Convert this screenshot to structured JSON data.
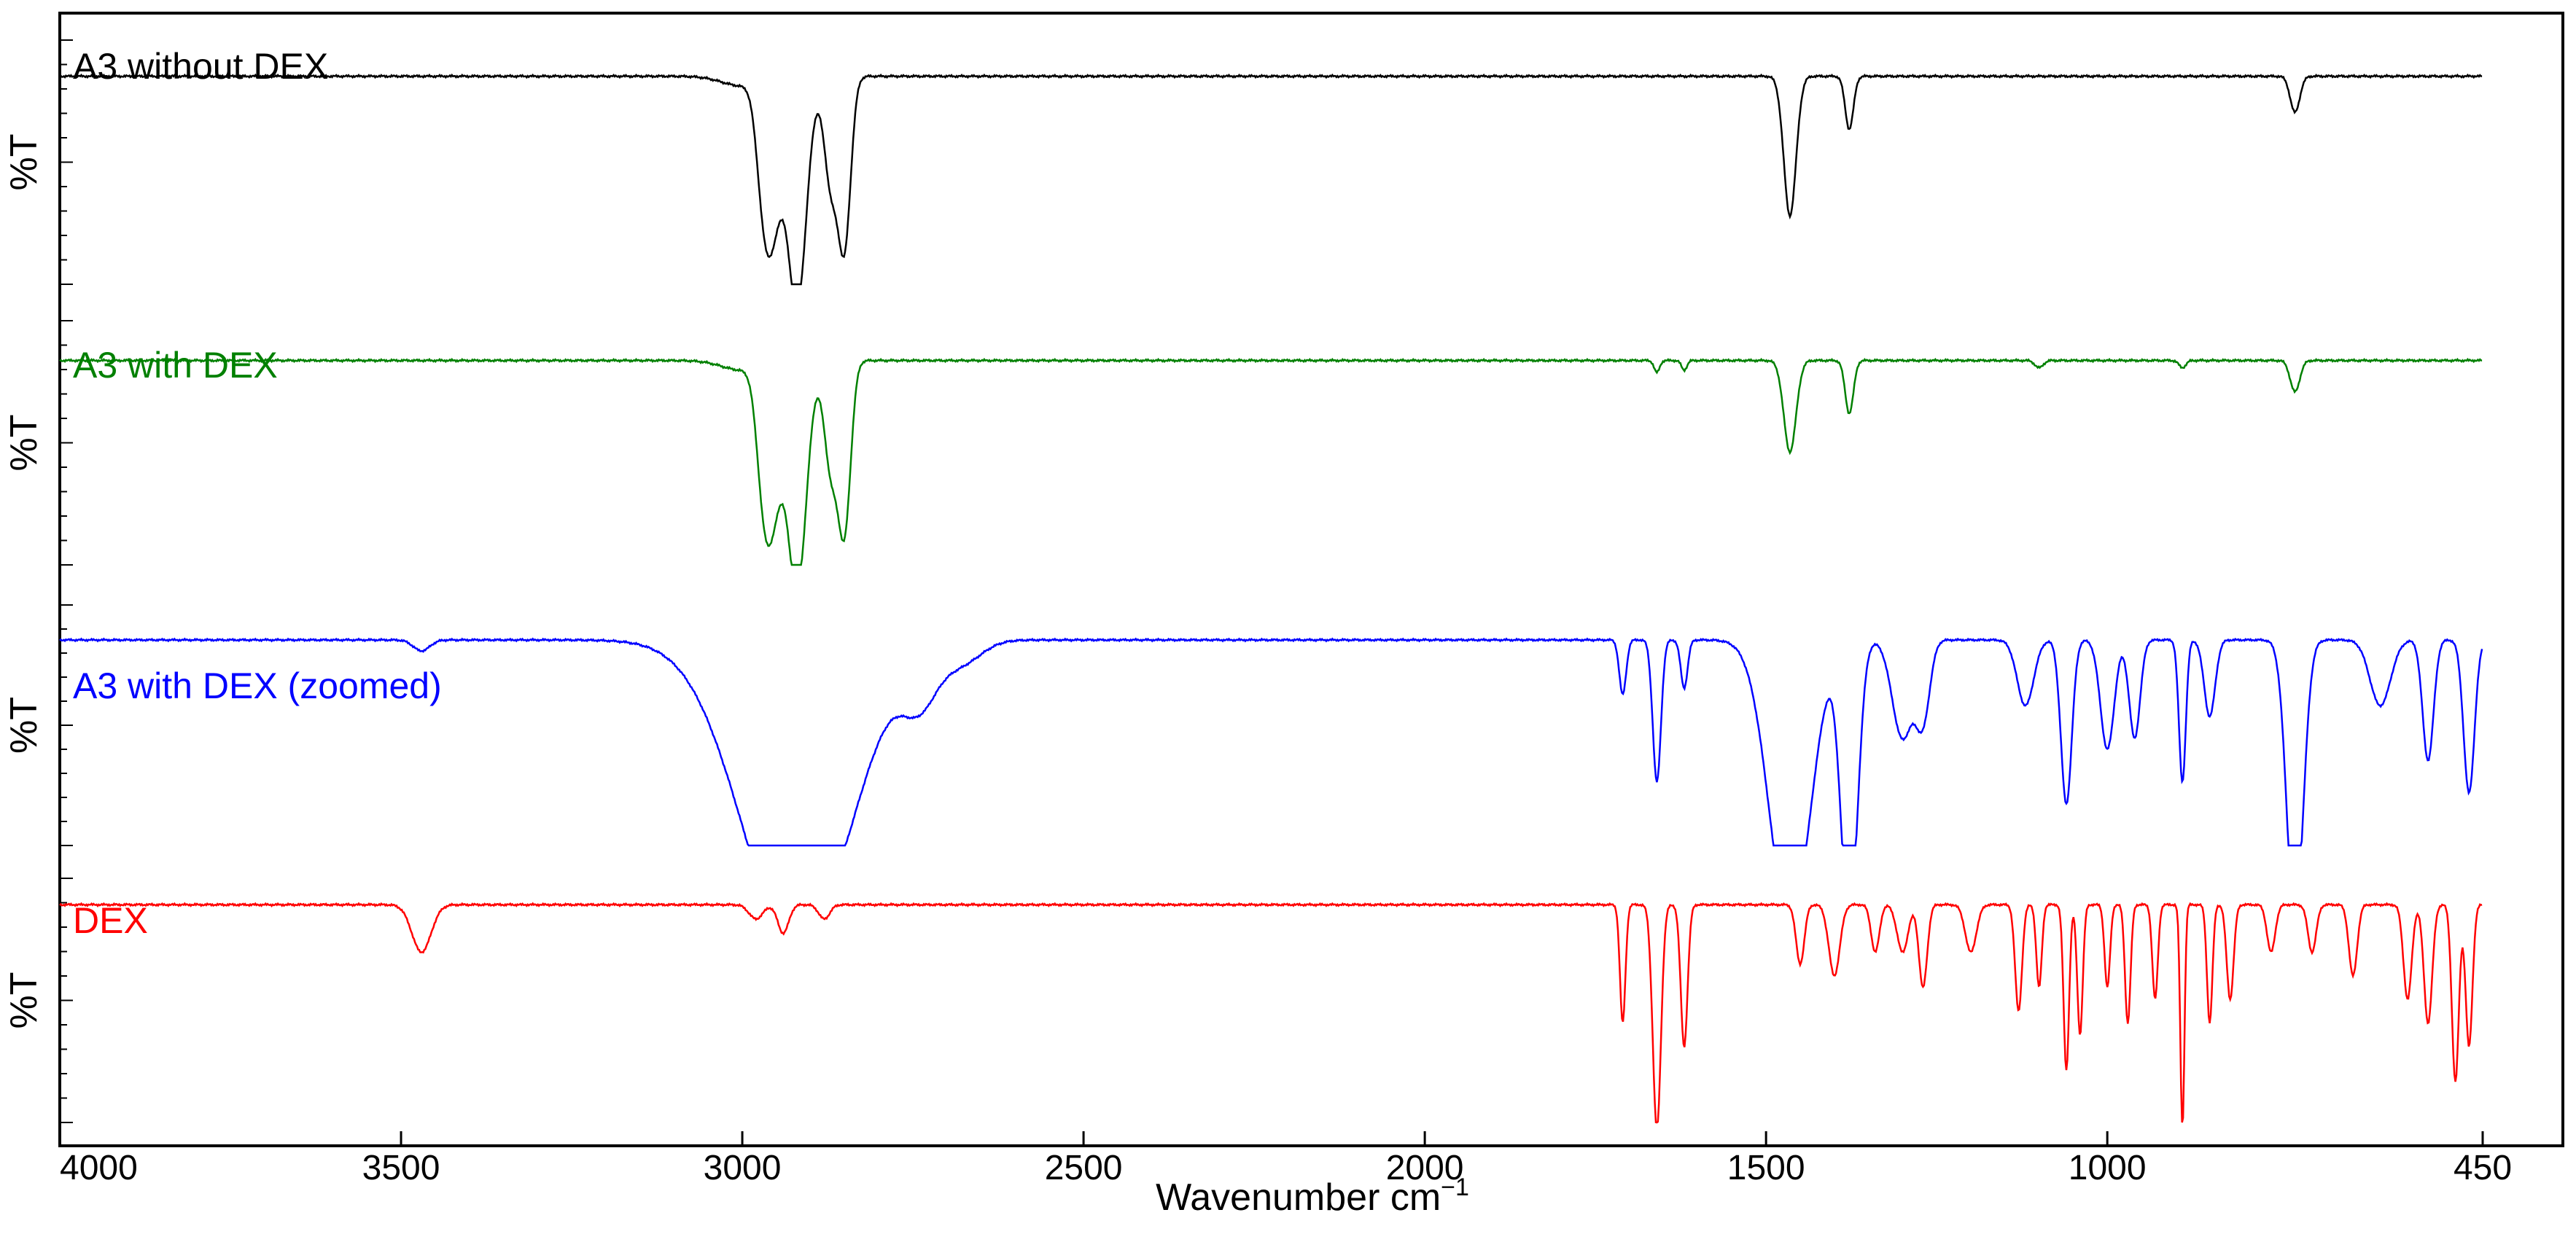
{
  "chart_data": {
    "type": "line",
    "xlabel_main": "Wavenumber cm",
    "xlabel_sup": "−1",
    "ylabel": "%T",
    "xlim": [
      4000,
      450
    ],
    "x_ticks": [
      4000,
      3500,
      3000,
      2500,
      2000,
      1500,
      1000,
      450
    ],
    "grid": false,
    "legend": "none",
    "series": [
      {
        "name": "A3 without DEX",
        "color": "#000000",
        "baseline": 0.12,
        "peaks": [
          [
            3000,
            0.04,
            30
          ],
          [
            2970,
            0.35,
            10
          ],
          [
            2955,
            0.55,
            12
          ],
          [
            2920,
            0.95,
            14
          ],
          [
            2870,
            0.45,
            10
          ],
          [
            2850,
            0.68,
            9
          ],
          [
            1465,
            0.58,
            9
          ],
          [
            1378,
            0.22,
            6
          ],
          [
            725,
            0.15,
            7
          ]
        ]
      },
      {
        "name": "A3 with DEX",
        "color": "#008000",
        "baseline": 0.12,
        "peaks": [
          [
            3000,
            0.04,
            30
          ],
          [
            2970,
            0.38,
            10
          ],
          [
            2955,
            0.55,
            12
          ],
          [
            2920,
            0.95,
            14
          ],
          [
            2870,
            0.45,
            10
          ],
          [
            2850,
            0.68,
            9
          ],
          [
            1660,
            0.05,
            4
          ],
          [
            1620,
            0.04,
            4
          ],
          [
            1465,
            0.38,
            9
          ],
          [
            1378,
            0.22,
            6
          ],
          [
            1100,
            0.03,
            6
          ],
          [
            890,
            0.03,
            5
          ],
          [
            725,
            0.13,
            7
          ]
        ]
      },
      {
        "name": "A3 with DEX (zoomed)",
        "color": "#0000ff",
        "baseline": 0.1,
        "peaks": [
          [
            3470,
            0.05,
            12
          ],
          [
            2920,
            1.4,
            80
          ],
          [
            2740,
            0.22,
            25
          ],
          [
            2680,
            0.1,
            30
          ],
          [
            1710,
            0.25,
            5
          ],
          [
            1660,
            0.65,
            6
          ],
          [
            1620,
            0.22,
            5
          ],
          [
            1465,
            1.3,
            30
          ],
          [
            1378,
            1.3,
            12
          ],
          [
            1300,
            0.45,
            15
          ],
          [
            1270,
            0.35,
            10
          ],
          [
            1120,
            0.3,
            12
          ],
          [
            1060,
            0.75,
            8
          ],
          [
            1000,
            0.5,
            10
          ],
          [
            960,
            0.45,
            8
          ],
          [
            890,
            0.65,
            5
          ],
          [
            850,
            0.35,
            8
          ],
          [
            725,
            1.3,
            12
          ],
          [
            600,
            0.3,
            15
          ],
          [
            530,
            0.55,
            8
          ],
          [
            470,
            0.7,
            8
          ]
        ]
      },
      {
        "name": "DEX",
        "color": "#ff0000",
        "baseline": 0.05,
        "peaks": [
          [
            3470,
            0.2,
            14
          ],
          [
            2980,
            0.06,
            10
          ],
          [
            2940,
            0.12,
            8
          ],
          [
            2880,
            0.06,
            8
          ],
          [
            1710,
            0.5,
            4
          ],
          [
            1660,
            0.95,
            6
          ],
          [
            1620,
            0.6,
            5
          ],
          [
            1450,
            0.25,
            6
          ],
          [
            1400,
            0.3,
            8
          ],
          [
            1340,
            0.2,
            6
          ],
          [
            1300,
            0.2,
            8
          ],
          [
            1270,
            0.35,
            6
          ],
          [
            1200,
            0.2,
            8
          ],
          [
            1130,
            0.45,
            5
          ],
          [
            1100,
            0.35,
            4
          ],
          [
            1060,
            0.7,
            4
          ],
          [
            1040,
            0.55,
            4
          ],
          [
            1000,
            0.35,
            4
          ],
          [
            970,
            0.5,
            4
          ],
          [
            930,
            0.4,
            4
          ],
          [
            890,
            0.95,
            3
          ],
          [
            850,
            0.5,
            4
          ],
          [
            820,
            0.4,
            5
          ],
          [
            760,
            0.2,
            6
          ],
          [
            700,
            0.2,
            6
          ],
          [
            640,
            0.3,
            6
          ],
          [
            560,
            0.4,
            6
          ],
          [
            530,
            0.5,
            6
          ],
          [
            490,
            0.75,
            5
          ],
          [
            470,
            0.6,
            5
          ]
        ]
      }
    ]
  }
}
